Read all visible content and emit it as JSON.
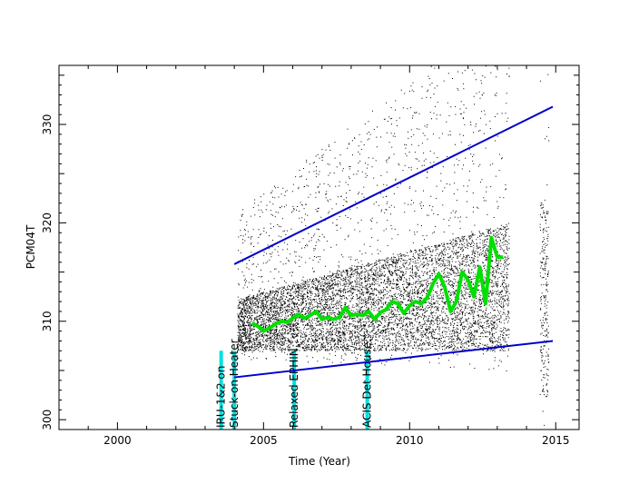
{
  "chart_data": {
    "type": "scatter",
    "title": "",
    "xlabel": "Time (Year)",
    "ylabel": "PCM04T",
    "xlim": [
      1998,
      2015.8
    ],
    "ylim": [
      299,
      336
    ],
    "x_ticks": [
      2000,
      2005,
      2010,
      2015
    ],
    "x_tick_labels": [
      "2000",
      "2005",
      "2010",
      "2015"
    ],
    "y_ticks": [
      300,
      310,
      320,
      330
    ],
    "y_tick_labels": [
      "300",
      "310",
      "320",
      "330"
    ],
    "grid": false,
    "legend": "none",
    "colors": {
      "points": "#000000",
      "smooth": "#00e000",
      "envelope": "#0000cc",
      "event_marker": "#00e0e0"
    },
    "events": [
      {
        "x": 2003.55,
        "label": "IRU-1&2 on"
      },
      {
        "x": 2004.0,
        "label": "Stuck-on Heater"
      },
      {
        "x": 2006.05,
        "label": "Relaxed EPHIN"
      },
      {
        "x": 2008.55,
        "label": "ACIS Det House"
      }
    ],
    "upper_envelope": {
      "x": [
        2004.0,
        2014.9
      ],
      "y": [
        315.8,
        331.8
      ]
    },
    "lower_envelope": {
      "x": [
        2004.0,
        2014.9
      ],
      "y": [
        304.3,
        308.0
      ]
    },
    "smooth_trend": {
      "x": [
        2004.6,
        2004.8,
        2005.0,
        2005.2,
        2005.4,
        2005.6,
        2005.8,
        2006.0,
        2006.2,
        2006.4,
        2006.6,
        2006.8,
        2007.0,
        2007.2,
        2007.4,
        2007.6,
        2007.8,
        2008.0,
        2008.2,
        2008.4,
        2008.6,
        2008.8,
        2009.0,
        2009.2,
        2009.4,
        2009.6,
        2009.8,
        2010.0,
        2010.2,
        2010.4,
        2010.6,
        2010.8,
        2011.0,
        2011.2,
        2011.4,
        2011.6,
        2011.8,
        2012.0,
        2012.2,
        2012.4,
        2012.6,
        2012.8,
        2013.0,
        2013.2
      ],
      "y": [
        309.8,
        309.5,
        309.0,
        309.3,
        309.7,
        310.0,
        309.9,
        310.3,
        310.7,
        310.3,
        310.6,
        311.0,
        310.2,
        310.4,
        310.2,
        310.4,
        311.4,
        310.6,
        310.7,
        310.6,
        311.0,
        310.2,
        310.9,
        311.2,
        312.0,
        311.8,
        310.8,
        311.6,
        312.0,
        311.8,
        312.4,
        313.8,
        314.8,
        313.5,
        311.0,
        312.0,
        315.0,
        314.2,
        312.5,
        315.5,
        311.8,
        318.5,
        316.5,
        316.5
      ]
    },
    "scatter_segments": [
      {
        "x_range": [
          2004.1,
          2013.4
        ],
        "center": [
          309.6,
          313.5
        ],
        "spread": [
          2.6,
          6.5
        ]
      },
      {
        "x_range": [
          2014.45,
          2014.75
        ],
        "center": [
          312.0,
          312.0
        ],
        "spread": [
          10.0,
          10.0
        ]
      }
    ]
  }
}
